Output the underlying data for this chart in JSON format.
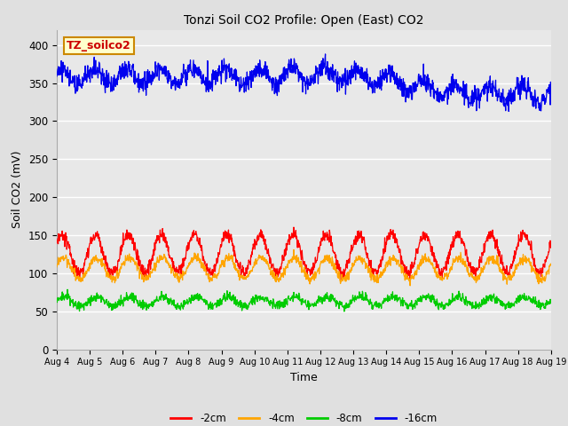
{
  "title": "Tonzi Soil CO2 Profile: Open (East) CO2",
  "ylabel": "Soil CO2 (mV)",
  "xlabel": "Time",
  "annotation_text": "TZ_soilco2",
  "annotation_bg": "#FFFFCC",
  "annotation_border": "#CC8800",
  "ylim": [
    0,
    420
  ],
  "yticks": [
    0,
    50,
    100,
    150,
    200,
    250,
    300,
    350,
    400
  ],
  "x_tick_labels": [
    "Aug 4",
    "Aug 5",
    "Aug 6",
    "Aug 7",
    "Aug 8",
    "Aug 9",
    "Aug 10",
    "Aug 11",
    "Aug 12",
    "Aug 13",
    "Aug 14",
    "Aug 15",
    "Aug 16",
    "Aug 17",
    "Aug 18",
    "Aug 19"
  ],
  "bg_color": "#E0E0E0",
  "plot_bg_color": "#E8E8E8",
  "grid_color": "#FFFFFF",
  "line_colors": {
    "-2cm": "#FF0000",
    "-4cm": "#FFA500",
    "-8cm": "#00CC00",
    "-16cm": "#0000EE"
  },
  "n_points": 1440,
  "seed": 42
}
